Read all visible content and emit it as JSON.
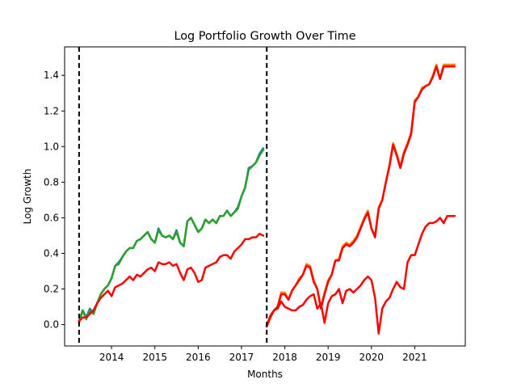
{
  "chart_data": {
    "type": "line",
    "title": "Log Portfolio Growth Over Time",
    "xlabel": "Months",
    "ylabel": "Log Growth",
    "x_axis": "date",
    "xlim": [
      "2012-12",
      "2022-03"
    ],
    "ylim": [
      -0.12,
      1.56
    ],
    "x_ticks": [
      "2014-01",
      "2015-01",
      "2016-01",
      "2017-01",
      "2018-01",
      "2019-01",
      "2020-01",
      "2021-01"
    ],
    "x_tick_labels": [
      "2014",
      "2015",
      "2016",
      "2017",
      "2018",
      "2019",
      "2020",
      "2021"
    ],
    "y_ticks": [
      0.0,
      0.2,
      0.4,
      0.6,
      0.8,
      1.0,
      1.2,
      1.4
    ],
    "y_tick_labels": [
      "0.0",
      "0.2",
      "0.4",
      "0.6",
      "0.8",
      "1.0",
      "1.2",
      "1.4"
    ],
    "grid": false,
    "legend": "none",
    "vertical_markers": [
      {
        "x": "2013-04",
        "style": "dashed",
        "color": "#000000"
      },
      {
        "x": "2017-08",
        "style": "dashed",
        "color": "#000000"
      }
    ],
    "series": [
      {
        "color": "#1f77b4",
        "x": [
          "2013-04",
          "2013-05",
          "2013-06",
          "2013-07",
          "2013-08",
          "2013-09",
          "2013-10",
          "2013-11",
          "2013-12",
          "2014-01",
          "2014-02",
          "2014-03",
          "2014-04",
          "2014-05",
          "2014-06",
          "2014-07",
          "2014-08",
          "2014-09",
          "2014-10",
          "2014-11",
          "2014-12",
          "2015-01",
          "2015-02",
          "2015-03",
          "2015-04",
          "2015-05",
          "2015-06",
          "2015-07",
          "2015-08",
          "2015-09",
          "2015-10",
          "2015-11",
          "2015-12",
          "2016-01",
          "2016-02",
          "2016-03",
          "2016-04",
          "2016-05",
          "2016-06",
          "2016-07",
          "2016-08",
          "2016-09",
          "2016-10",
          "2016-11",
          "2016-12",
          "2017-01",
          "2017-02",
          "2017-03",
          "2017-04",
          "2017-05",
          "2017-06",
          "2017-07"
        ],
        "values": [
          0.02,
          0.08,
          0.04,
          0.09,
          0.06,
          0.12,
          0.17,
          0.2,
          0.22,
          0.26,
          0.33,
          0.35,
          0.38,
          0.41,
          0.43,
          0.43,
          0.47,
          0.48,
          0.5,
          0.52,
          0.48,
          0.46,
          0.54,
          0.5,
          0.49,
          0.5,
          0.48,
          0.53,
          0.46,
          0.44,
          0.58,
          0.6,
          0.56,
          0.52,
          0.54,
          0.59,
          0.57,
          0.59,
          0.57,
          0.61,
          0.61,
          0.64,
          0.61,
          0.63,
          0.66,
          0.72,
          0.77,
          0.88,
          0.89,
          0.91,
          0.96,
          0.99
        ]
      },
      {
        "color": "#2ca02c",
        "x": [
          "2013-04",
          "2013-05",
          "2013-06",
          "2013-07",
          "2013-08",
          "2013-09",
          "2013-10",
          "2013-11",
          "2013-12",
          "2014-01",
          "2014-02",
          "2014-03",
          "2014-04",
          "2014-05",
          "2014-06",
          "2014-07",
          "2014-08",
          "2014-09",
          "2014-10",
          "2014-11",
          "2014-12",
          "2015-01",
          "2015-02",
          "2015-03",
          "2015-04",
          "2015-05",
          "2015-06",
          "2015-07",
          "2015-08",
          "2015-09",
          "2015-10",
          "2015-11",
          "2015-12",
          "2016-01",
          "2016-02",
          "2016-03",
          "2016-04",
          "2016-05",
          "2016-06",
          "2016-07",
          "2016-08",
          "2016-09",
          "2016-10",
          "2016-11",
          "2016-12",
          "2017-01",
          "2017-02",
          "2017-03",
          "2017-04",
          "2017-05",
          "2017-06",
          "2017-07"
        ],
        "values": [
          0.01,
          0.08,
          0.03,
          0.08,
          0.06,
          0.12,
          0.17,
          0.2,
          0.22,
          0.26,
          0.33,
          0.34,
          0.38,
          0.41,
          0.43,
          0.43,
          0.47,
          0.48,
          0.5,
          0.52,
          0.48,
          0.46,
          0.53,
          0.5,
          0.49,
          0.5,
          0.48,
          0.52,
          0.46,
          0.44,
          0.58,
          0.6,
          0.56,
          0.52,
          0.54,
          0.59,
          0.57,
          0.59,
          0.57,
          0.61,
          0.61,
          0.64,
          0.61,
          0.63,
          0.65,
          0.72,
          0.77,
          0.87,
          0.89,
          0.91,
          0.95,
          0.98
        ]
      },
      {
        "color": "#ff0000",
        "x": [
          "2013-04",
          "2013-05",
          "2013-06",
          "2013-07",
          "2013-08",
          "2013-09",
          "2013-10",
          "2013-11",
          "2013-12",
          "2014-01",
          "2014-02",
          "2014-03",
          "2014-04",
          "2014-05",
          "2014-06",
          "2014-07",
          "2014-08",
          "2014-09",
          "2014-10",
          "2014-11",
          "2014-12",
          "2015-01",
          "2015-02",
          "2015-03",
          "2015-04",
          "2015-05",
          "2015-06",
          "2015-07",
          "2015-08",
          "2015-09",
          "2015-10",
          "2015-11",
          "2015-12",
          "2016-01",
          "2016-02",
          "2016-03",
          "2016-04",
          "2016-05",
          "2016-06",
          "2016-07",
          "2016-08",
          "2016-09",
          "2016-10",
          "2016-11",
          "2016-12",
          "2017-01",
          "2017-02",
          "2017-03",
          "2017-04",
          "2017-05",
          "2017-06",
          "2017-07"
        ],
        "values": [
          0.02,
          0.04,
          0.04,
          0.06,
          0.08,
          0.12,
          0.15,
          0.17,
          0.19,
          0.16,
          0.21,
          0.22,
          0.23,
          0.25,
          0.27,
          0.25,
          0.28,
          0.27,
          0.29,
          0.31,
          0.32,
          0.3,
          0.35,
          0.34,
          0.34,
          0.35,
          0.33,
          0.34,
          0.29,
          0.25,
          0.31,
          0.32,
          0.29,
          0.24,
          0.25,
          0.32,
          0.33,
          0.34,
          0.35,
          0.38,
          0.39,
          0.39,
          0.37,
          0.41,
          0.43,
          0.45,
          0.48,
          0.48,
          0.49,
          0.49,
          0.51,
          0.5
        ]
      },
      {
        "color": "#ff7f0e",
        "x": [
          "2017-08",
          "2017-09",
          "2017-10",
          "2017-11",
          "2017-12",
          "2018-01",
          "2018-02",
          "2018-03",
          "2018-04",
          "2018-05",
          "2018-06",
          "2018-07",
          "2018-08",
          "2018-09",
          "2018-10",
          "2018-11",
          "2018-12",
          "2019-01",
          "2019-02",
          "2019-03",
          "2019-04",
          "2019-05",
          "2019-06",
          "2019-07",
          "2019-08",
          "2019-09",
          "2019-10",
          "2019-11",
          "2019-12",
          "2020-01",
          "2020-02",
          "2020-03",
          "2020-04",
          "2020-05",
          "2020-06",
          "2020-07",
          "2020-08",
          "2020-09",
          "2020-10",
          "2020-11",
          "2020-12",
          "2021-01",
          "2021-02",
          "2021-03",
          "2021-04",
          "2021-05",
          "2021-06",
          "2021-07",
          "2021-08",
          "2021-09",
          "2021-10",
          "2021-11",
          "2021-12"
        ],
        "values": [
          0.0,
          0.05,
          0.08,
          0.1,
          0.18,
          0.18,
          0.14,
          0.19,
          0.22,
          0.26,
          0.28,
          0.34,
          0.33,
          0.25,
          0.2,
          0.1,
          0.18,
          0.25,
          0.28,
          0.36,
          0.37,
          0.44,
          0.46,
          0.45,
          0.47,
          0.5,
          0.55,
          0.6,
          0.64,
          0.54,
          0.5,
          0.66,
          0.7,
          0.8,
          0.9,
          1.02,
          0.96,
          0.89,
          0.97,
          1.02,
          1.08,
          1.26,
          1.28,
          1.33,
          1.34,
          1.35,
          1.4,
          1.46,
          1.38,
          1.46,
          1.46,
          1.46,
          1.46
        ]
      },
      {
        "color": "#ff0000",
        "x": [
          "2017-08",
          "2017-09",
          "2017-10",
          "2017-11",
          "2017-12",
          "2018-01",
          "2018-02",
          "2018-03",
          "2018-04",
          "2018-05",
          "2018-06",
          "2018-07",
          "2018-08",
          "2018-09",
          "2018-10",
          "2018-11",
          "2018-12",
          "2019-01",
          "2019-02",
          "2019-03",
          "2019-04",
          "2019-05",
          "2019-06",
          "2019-07",
          "2019-08",
          "2019-09",
          "2019-10",
          "2019-11",
          "2019-12",
          "2020-01",
          "2020-02",
          "2020-03",
          "2020-04",
          "2020-05",
          "2020-06",
          "2020-07",
          "2020-08",
          "2020-09",
          "2020-10",
          "2020-11",
          "2020-12",
          "2021-01",
          "2021-02",
          "2021-03",
          "2021-04",
          "2021-05",
          "2021-06",
          "2021-07",
          "2021-08",
          "2021-09",
          "2021-10",
          "2021-11",
          "2021-12"
        ],
        "values": [
          -0.01,
          0.04,
          0.08,
          0.09,
          0.13,
          0.1,
          0.09,
          0.08,
          0.08,
          0.1,
          0.11,
          0.14,
          0.16,
          0.17,
          0.09,
          0.12,
          0.01,
          0.12,
          0.16,
          0.17,
          0.2,
          0.12,
          0.19,
          0.2,
          0.18,
          0.2,
          0.22,
          0.25,
          0.27,
          0.25,
          0.15,
          -0.05,
          0.09,
          0.13,
          0.15,
          0.2,
          0.24,
          0.21,
          0.2,
          0.35,
          0.39,
          0.39,
          0.45,
          0.51,
          0.55,
          0.57,
          0.57,
          0.58,
          0.6,
          0.57,
          0.61,
          0.61,
          0.61
        ]
      },
      {
        "color": "#ff0000",
        "x": [
          "2017-08",
          "2017-09",
          "2017-10",
          "2017-11",
          "2017-12",
          "2018-01",
          "2018-02",
          "2018-03",
          "2018-04",
          "2018-05",
          "2018-06",
          "2018-07",
          "2018-08",
          "2018-09",
          "2018-10",
          "2018-11",
          "2018-12",
          "2019-01",
          "2019-02",
          "2019-03",
          "2019-04",
          "2019-05",
          "2019-06",
          "2019-07",
          "2019-08",
          "2019-09",
          "2019-10",
          "2019-11",
          "2019-12",
          "2020-01",
          "2020-02",
          "2020-03",
          "2020-04",
          "2020-05",
          "2020-06",
          "2020-07",
          "2020-08",
          "2020-09",
          "2020-10",
          "2020-11",
          "2020-12",
          "2021-01",
          "2021-02",
          "2021-03",
          "2021-04",
          "2021-05",
          "2021-06",
          "2021-07",
          "2021-08",
          "2021-09",
          "2021-10",
          "2021-11",
          "2021-12"
        ],
        "values": [
          -0.01,
          0.05,
          0.08,
          0.1,
          0.17,
          0.17,
          0.14,
          0.19,
          0.22,
          0.25,
          0.28,
          0.33,
          0.32,
          0.24,
          0.2,
          0.09,
          0.17,
          0.24,
          0.28,
          0.36,
          0.36,
          0.43,
          0.45,
          0.44,
          0.46,
          0.49,
          0.54,
          0.59,
          0.63,
          0.54,
          0.49,
          0.65,
          0.7,
          0.8,
          0.89,
          1.01,
          0.95,
          0.88,
          0.96,
          1.01,
          1.07,
          1.25,
          1.28,
          1.32,
          1.34,
          1.35,
          1.39,
          1.45,
          1.38,
          1.45,
          1.45,
          1.45,
          1.45
        ]
      }
    ]
  }
}
